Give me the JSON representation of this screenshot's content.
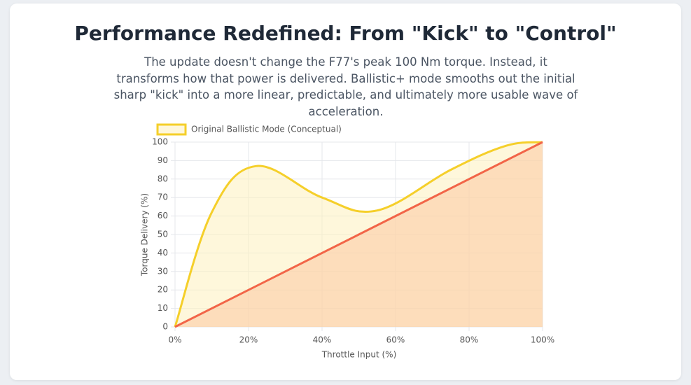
{
  "chart_data": {
    "type": "line",
    "title": "Performance Redefined: From \"Kick\" to \"Control\"",
    "subtitle": "The update doesn't change the F77's peak 100 Nm torque. Instead, it transforms how that power is delivered. Ballistic+ mode smooths out the initial sharp \"kick\" into a more linear, predictable, and ultimately more usable wave of acceleration.",
    "x_label": "Throttle Input (%)",
    "y_label": "Torque Delivery (%)",
    "series": [
      {
        "name": "Original Ballistic Mode (Conceptual)",
        "color": "#f5cf2a",
        "fill": "rgba(253,240,190,0.55)",
        "x": [
          0,
          10,
          22,
          40,
          55,
          75,
          90,
          100
        ],
        "values": [
          0,
          62,
          87,
          70,
          63,
          85,
          98,
          100
        ]
      },
      {
        "color": "#f26548",
        "fill": "rgba(252,200,160,0.55)",
        "x": [
          0,
          100
        ],
        "values": [
          0,
          100
        ]
      }
    ],
    "xlim": [
      0,
      100
    ],
    "xticks": [
      {
        "value": 0,
        "label": "0%"
      },
      {
        "value": 20,
        "label": "20%"
      },
      {
        "value": 40,
        "label": "40%"
      },
      {
        "value": 60,
        "label": "60%"
      },
      {
        "value": 80,
        "label": "80%"
      },
      {
        "value": 100,
        "label": "100%"
      }
    ],
    "ylim": [
      0,
      100
    ],
    "yticks": [
      0,
      10,
      20,
      30,
      40,
      50,
      60,
      70,
      80,
      90,
      100
    ],
    "grid": true,
    "legend": "top-left"
  }
}
